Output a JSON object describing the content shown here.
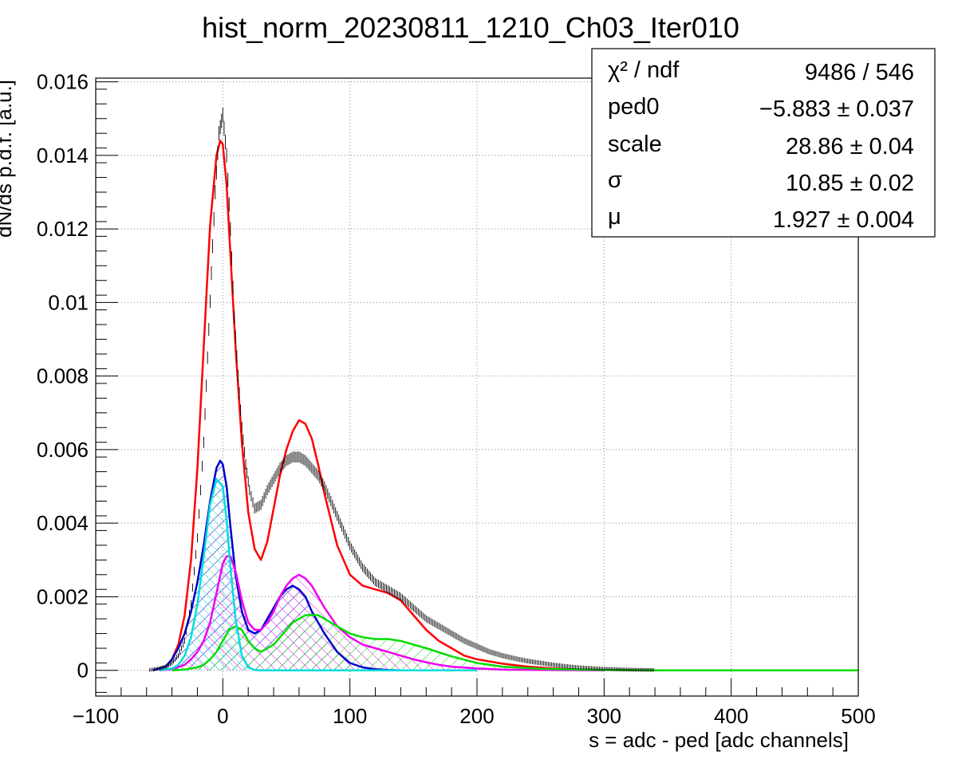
{
  "chart_data": {
    "type": "line",
    "title": "hist_norm_20230811_1210_Ch03_Iter010",
    "xlabel": "s = adc - ped [adc channels]",
    "ylabel": "dN/ds p.d.f. [a.u.]",
    "xlim": [
      -100,
      500
    ],
    "ylim": [
      -0.0007,
      0.0161
    ],
    "grid": true,
    "x_ticks": [
      -100,
      0,
      100,
      200,
      300,
      400,
      500
    ],
    "x_tick_labels": [
      "−100",
      "0",
      "100",
      "200",
      "300",
      "400",
      "500"
    ],
    "y_ticks": [
      0,
      0.002,
      0.004,
      0.006,
      0.008,
      0.01,
      0.012,
      0.014,
      0.016
    ],
    "y_tick_labels": [
      "0",
      "0.002",
      "0.004",
      "0.006",
      "0.008",
      "0.01",
      "0.012",
      "0.014",
      "0.016"
    ],
    "stats_box": {
      "placement": "top-right",
      "rows": [
        {
          "name": "χ² / ndf",
          "value": "9486 / 546"
        },
        {
          "name": "ped0",
          "value": "−5.883 ± 0.037"
        },
        {
          "name": "scale",
          "value": "28.86 ± 0.04"
        },
        {
          "name": "σ",
          "value": "10.85 ± 0.02"
        },
        {
          "name": "μ",
          "value": "1.927 ± 0.004"
        }
      ]
    },
    "data_points": {
      "color": "#000000",
      "x": [
        -60,
        -50,
        -45,
        -40,
        -35,
        -30,
        -25,
        -20,
        -15,
        -12,
        -9,
        -6,
        -3,
        0,
        3,
        6,
        9,
        12,
        15,
        18,
        21,
        25,
        30,
        35,
        40,
        45,
        50,
        55,
        60,
        65,
        70,
        75,
        80,
        85,
        90,
        95,
        100,
        110,
        120,
        130,
        140,
        150,
        160,
        170,
        180,
        190,
        200,
        210,
        220,
        230,
        240,
        250,
        260,
        270,
        280,
        290,
        300,
        320,
        340,
        360,
        380,
        400,
        450,
        500
      ],
      "y": [
        0,
        5e-05,
        0.0001,
        0.0002,
        0.0004,
        0.0008,
        0.0018,
        0.0036,
        0.0062,
        0.0085,
        0.0108,
        0.013,
        0.0146,
        0.0151,
        0.014,
        0.012,
        0.0096,
        0.008,
        0.0066,
        0.0056,
        0.0049,
        0.0044,
        0.0045,
        0.0049,
        0.0052,
        0.0055,
        0.0057,
        0.0058,
        0.0058,
        0.0057,
        0.0055,
        0.0053,
        0.005,
        0.0046,
        0.0042,
        0.0038,
        0.0034,
        0.0028,
        0.0024,
        0.0022,
        0.002,
        0.0017,
        0.0014,
        0.0012,
        0.001,
        0.0008,
        0.00065,
        0.0005,
        0.0004,
        0.00032,
        0.00025,
        0.0002,
        0.00015,
        0.00011,
        8e-05,
        6e-05,
        4e-05,
        2e-05,
        1e-05,
        5e-06,
        0,
        0,
        0,
        0
      ]
    },
    "series": [
      {
        "color": "#ff0000",
        "x": [
          -55,
          -45,
          -40,
          -35,
          -30,
          -25,
          -20,
          -15,
          -10,
          -5,
          -2,
          0,
          3,
          6,
          10,
          15,
          20,
          25,
          30,
          35,
          40,
          45,
          50,
          55,
          60,
          65,
          70,
          75,
          80,
          90,
          100,
          110,
          120,
          130,
          140,
          150,
          160,
          170,
          180,
          190,
          200,
          220,
          240,
          260,
          280,
          300,
          330,
          360,
          400,
          450,
          500
        ],
        "y": [
          0,
          0.0001,
          0.0003,
          0.0007,
          0.0015,
          0.003,
          0.0055,
          0.0088,
          0.0121,
          0.014,
          0.0144,
          0.0143,
          0.0132,
          0.0113,
          0.0088,
          0.0062,
          0.0043,
          0.0033,
          0.003,
          0.0035,
          0.0044,
          0.0053,
          0.006,
          0.0065,
          0.0068,
          0.0067,
          0.0063,
          0.0056,
          0.0048,
          0.0034,
          0.0026,
          0.0023,
          0.0022,
          0.0021,
          0.0019,
          0.0015,
          0.0011,
          0.0008,
          0.0006,
          0.0004,
          0.0003,
          0.00018,
          0.0001,
          5e-05,
          2e-05,
          1e-05,
          0,
          0,
          0,
          0,
          0
        ]
      },
      {
        "color": "#0000cc",
        "fill": "hatch",
        "x": [
          -55,
          -45,
          -40,
          -35,
          -30,
          -25,
          -20,
          -15,
          -10,
          -5,
          -2,
          0,
          3,
          6,
          10,
          15,
          20,
          25,
          30,
          35,
          40,
          45,
          50,
          55,
          60,
          65,
          70,
          80,
          90,
          100,
          110,
          120,
          130,
          140,
          150,
          160,
          180,
          200
        ],
        "y": [
          0,
          0.0001,
          0.0003,
          0.0006,
          0.001,
          0.0016,
          0.0024,
          0.0034,
          0.0046,
          0.0055,
          0.0057,
          0.0056,
          0.005,
          0.0039,
          0.0026,
          0.0016,
          0.0011,
          0.001,
          0.0011,
          0.0014,
          0.0017,
          0.002,
          0.0022,
          0.0023,
          0.0022,
          0.002,
          0.0016,
          0.001,
          0.0005,
          0.0002,
          8e-05,
          3e-05,
          1e-05,
          0,
          0,
          0,
          0,
          0
        ]
      },
      {
        "color": "#ee00ee",
        "fill": "hatch",
        "x": [
          -50,
          -40,
          -30,
          -25,
          -20,
          -15,
          -10,
          -5,
          0,
          3,
          6,
          10,
          15,
          20,
          25,
          30,
          35,
          40,
          45,
          50,
          55,
          60,
          65,
          70,
          75,
          80,
          90,
          100,
          110,
          120,
          130,
          140,
          150,
          160,
          170,
          180,
          200,
          220,
          250,
          300
        ],
        "y": [
          0,
          3e-05,
          0.00015,
          0.0003,
          0.0005,
          0.0008,
          0.0013,
          0.0021,
          0.0029,
          0.0031,
          0.0031,
          0.0027,
          0.0019,
          0.0013,
          0.0011,
          0.0011,
          0.0013,
          0.0016,
          0.002,
          0.0023,
          0.0025,
          0.0026,
          0.0025,
          0.0023,
          0.002,
          0.0017,
          0.0012,
          0.0009,
          0.0007,
          0.0006,
          0.0005,
          0.0004,
          0.0003,
          0.00022,
          0.00015,
          0.0001,
          5e-05,
          2e-05,
          1e-05,
          0
        ]
      },
      {
        "color": "#00dd00",
        "fill": "hatch",
        "x": [
          -40,
          -30,
          -20,
          -15,
          -10,
          -5,
          0,
          5,
          10,
          15,
          20,
          25,
          30,
          35,
          40,
          45,
          50,
          55,
          60,
          65,
          70,
          75,
          80,
          90,
          100,
          110,
          120,
          130,
          140,
          150,
          160,
          180,
          200,
          220,
          250,
          300,
          350,
          400,
          500
        ],
        "y": [
          0,
          2e-05,
          8e-05,
          0.00015,
          0.0003,
          0.0005,
          0.0008,
          0.0011,
          0.0012,
          0.0011,
          0.0008,
          0.0006,
          0.0005,
          0.0006,
          0.0007,
          0.0009,
          0.0011,
          0.0013,
          0.0014,
          0.0015,
          0.0015,
          0.0015,
          0.0014,
          0.0012,
          0.001,
          0.0009,
          0.00085,
          0.00085,
          0.0008,
          0.0007,
          0.0006,
          0.00038,
          0.0002,
          0.0001,
          4e-05,
          1e-05,
          0,
          0,
          0
        ]
      },
      {
        "color": "#00dddd",
        "fill": "hatch",
        "x": [
          -50,
          -40,
          -35,
          -30,
          -25,
          -20,
          -15,
          -10,
          -5,
          0,
          3,
          6,
          10,
          15,
          20,
          25,
          30,
          40,
          60,
          80,
          100,
          150,
          200
        ],
        "y": [
          0,
          5e-05,
          0.00015,
          0.0004,
          0.0009,
          0.0018,
          0.0031,
          0.0045,
          0.0052,
          0.005,
          0.0041,
          0.0028,
          0.0014,
          0.0004,
          8e-05,
          1e-05,
          0,
          0,
          0,
          0,
          0,
          0,
          0
        ]
      }
    ]
  }
}
